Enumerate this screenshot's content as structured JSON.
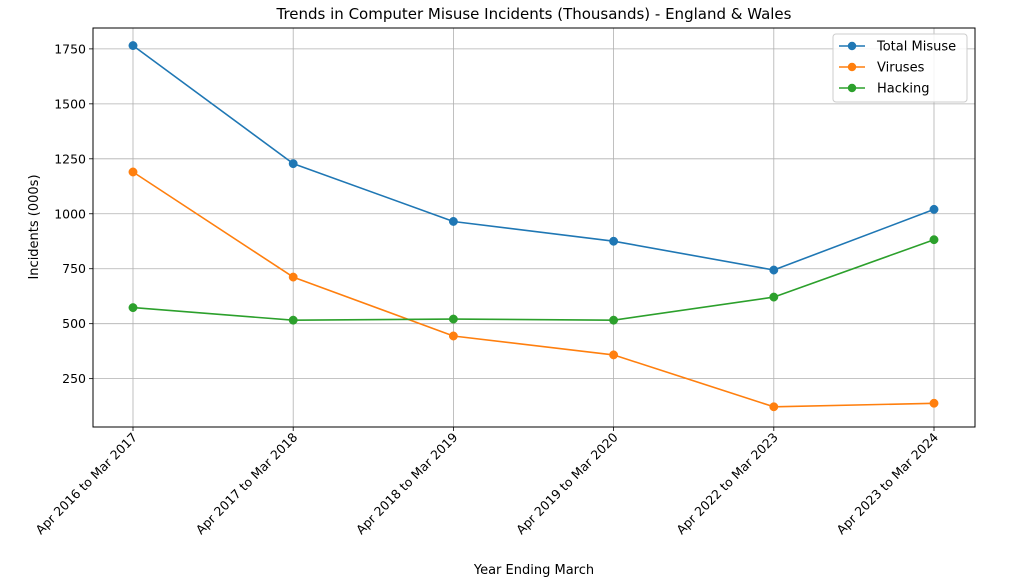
{
  "chart_data": {
    "type": "line",
    "title": "Trends in Computer Misuse Incidents (Thousands) - England & Wales",
    "xlabel": "Year Ending March",
    "ylabel": "Incidents (000s)",
    "categories": [
      "Apr 2016 to Mar 2017",
      "Apr 2017 to Mar 2018",
      "Apr 2018 to Mar 2019",
      "Apr 2019 to Mar 2020",
      "Apr 2022 to Mar 2023",
      "Apr 2023 to Mar 2024"
    ],
    "ylim": [
      30,
      1845
    ],
    "yticks": [
      250,
      500,
      750,
      1000,
      1250,
      1500,
      1750
    ],
    "grid": true,
    "legend_position": "top-right",
    "series": [
      {
        "name": "Total Misuse",
        "color": "#1f77b4",
        "values": [
          1765,
          1228,
          965,
          875,
          744,
          1020
        ]
      },
      {
        "name": "Viruses",
        "color": "#ff7f0e",
        "values": [
          1190,
          712,
          444,
          358,
          122,
          138
        ]
      },
      {
        "name": "Hacking",
        "color": "#2ca02c",
        "values": [
          573,
          516,
          521,
          516,
          621,
          882
        ]
      }
    ]
  }
}
